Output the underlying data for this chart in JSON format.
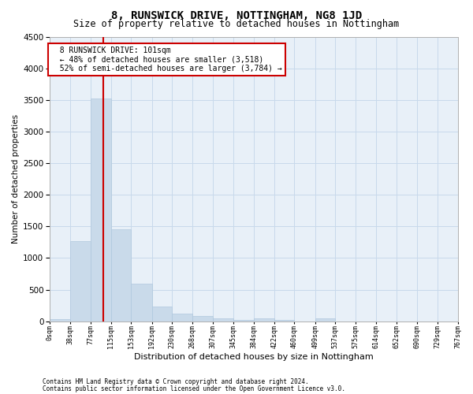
{
  "title": "8, RUNSWICK DRIVE, NOTTINGHAM, NG8 1JD",
  "subtitle": "Size of property relative to detached houses in Nottingham",
  "xlabel": "Distribution of detached houses by size in Nottingham",
  "ylabel": "Number of detached properties",
  "footer_line1": "Contains HM Land Registry data © Crown copyright and database right 2024.",
  "footer_line2": "Contains public sector information licensed under the Open Government Licence v3.0.",
  "annotation_title": "8 RUNSWICK DRIVE: 101sqm",
  "annotation_line2": "← 48% of detached houses are smaller (3,518)",
  "annotation_line3": "52% of semi-detached houses are larger (3,784) →",
  "bar_edges": [
    0,
    38,
    77,
    115,
    153,
    192,
    230,
    268,
    307,
    345,
    384,
    422,
    460,
    499,
    537,
    575,
    614,
    652,
    690,
    729,
    767
  ],
  "bar_heights": [
    40,
    1270,
    3518,
    1460,
    600,
    230,
    120,
    90,
    45,
    18,
    45,
    18,
    0,
    45,
    0,
    0,
    0,
    0,
    0,
    0
  ],
  "bar_color": "#c9daea",
  "bar_edge_color": "#b0c8de",
  "vline_x": 101,
  "vline_color": "#cc0000",
  "ylim": [
    0,
    4500
  ],
  "yticks": [
    0,
    500,
    1000,
    1500,
    2000,
    2500,
    3000,
    3500,
    4000,
    4500
  ],
  "grid_color": "#c8d9eb",
  "bg_color": "#e8f0f8",
  "annotation_box_color": "#cc0000",
  "title_fontsize": 10,
  "subtitle_fontsize": 8.5
}
